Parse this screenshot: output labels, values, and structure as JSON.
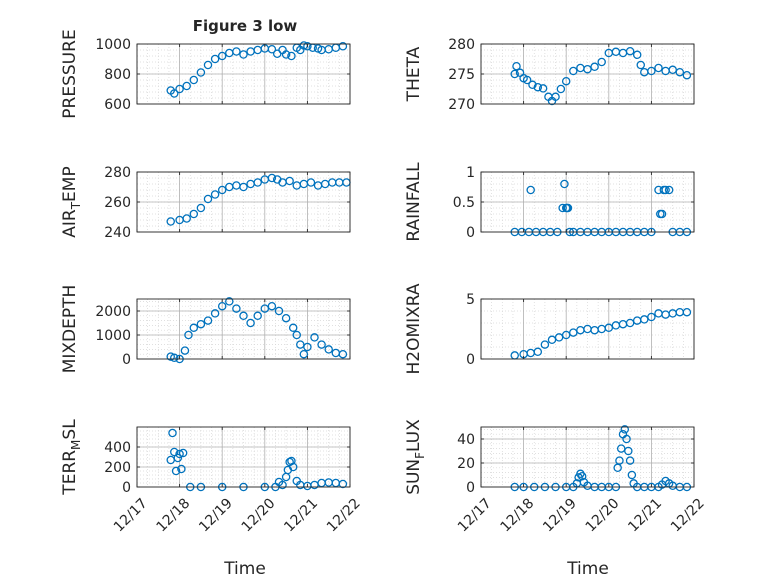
{
  "figure": {
    "title": "Figure 3 low",
    "xlabel": "Time"
  },
  "colors": {
    "marker": "#0072BD",
    "axis": "#262626",
    "grid": "#b0b0b0",
    "minor_grid": "#d6d6d6"
  },
  "chart_data": [
    {
      "type": "scatter",
      "name": "PRESSURE",
      "ylabel": "PRESSURE",
      "ylim": [
        600,
        1000
      ],
      "yticks": [
        600,
        800,
        1000
      ],
      "ytick_labels": [
        "600",
        "800",
        "1000"
      ],
      "xlim": [
        "12/17",
        "12/22"
      ],
      "grid": true,
      "x": [
        "12/17 19:00",
        "12/17 21:00",
        "12/18 00:00",
        "12/18 04:00",
        "12/18 08:00",
        "12/18 12:00",
        "12/18 16:00",
        "12/18 20:00",
        "12/19 00:00",
        "12/19 04:00",
        "12/19 08:00",
        "12/19 12:00",
        "12/19 16:00",
        "12/19 20:00",
        "12/20 00:00",
        "12/20 04:00",
        "12/20 07:00",
        "12/20 10:00",
        "12/20 12:00",
        "12/20 15:00",
        "12/20 18:00",
        "12/20 20:00",
        "12/20 22:00",
        "12/21 00:00",
        "12/21 03:00",
        "12/21 06:00",
        "12/21 08:00",
        "12/21 12:00",
        "12/21 16:00",
        "12/21 20:00"
      ],
      "y": [
        690,
        670,
        700,
        720,
        760,
        810,
        860,
        900,
        920,
        940,
        950,
        930,
        950,
        960,
        970,
        965,
        935,
        960,
        930,
        920,
        975,
        960,
        990,
        985,
        975,
        970,
        960,
        965,
        975,
        985
      ]
    },
    {
      "type": "scatter",
      "name": "THETA",
      "ylabel": "THETA",
      "ylim": [
        270,
        280
      ],
      "yticks": [
        270,
        275,
        280
      ],
      "ytick_labels": [
        "270",
        "275",
        "280"
      ],
      "xlim": [
        "12/17",
        "12/22"
      ],
      "grid": true,
      "x": [
        "12/17 19:00",
        "12/17 20:00",
        "12/17 22:00",
        "12/18 00:00",
        "12/18 02:00",
        "12/18 05:00",
        "12/18 08:00",
        "12/18 11:00",
        "12/18 14:00",
        "12/18 16:00",
        "12/18 18:00",
        "12/18 21:00",
        "12/19 00:00",
        "12/19 04:00",
        "12/19 08:00",
        "12/19 12:00",
        "12/19 16:00",
        "12/19 20:00",
        "12/20 00:00",
        "12/20 04:00",
        "12/20 08:00",
        "12/20 12:00",
        "12/20 16:00",
        "12/20 18:00",
        "12/20 20:00",
        "12/21 00:00",
        "12/21 04:00",
        "12/21 08:00",
        "12/21 12:00",
        "12/21 16:00",
        "12/21 20:00"
      ],
      "y": [
        275,
        276.3,
        275.2,
        274.3,
        274,
        273.2,
        272.8,
        272.6,
        271.2,
        270.5,
        271.2,
        272.5,
        273.8,
        275.5,
        276,
        275.8,
        276.2,
        277,
        278.5,
        278.7,
        278.5,
        278.8,
        278.2,
        276.5,
        275.3,
        275.5,
        276,
        275.5,
        275.7,
        275.3,
        274.8
      ]
    },
    {
      "type": "scatter",
      "name": "AIR_TEMP",
      "ylabel": "AIR_TEMP",
      "ylim": [
        240,
        280
      ],
      "yticks": [
        240,
        260,
        280
      ],
      "ytick_labels": [
        "240",
        "260",
        "280"
      ],
      "xlim": [
        "12/17",
        "12/22"
      ],
      "grid": true,
      "x": [
        "12/17 19:00",
        "12/18 00:00",
        "12/18 04:00",
        "12/18 08:00",
        "12/18 12:00",
        "12/18 16:00",
        "12/18 20:00",
        "12/19 00:00",
        "12/19 04:00",
        "12/19 08:00",
        "12/19 12:00",
        "12/19 16:00",
        "12/19 20:00",
        "12/20 00:00",
        "12/20 04:00",
        "12/20 07:00",
        "12/20 10:00",
        "12/20 14:00",
        "12/20 18:00",
        "12/20 22:00",
        "12/21 02:00",
        "12/21 06:00",
        "12/21 10:00",
        "12/21 14:00",
        "12/21 18:00",
        "12/21 22:00"
      ],
      "y": [
        247,
        248,
        249,
        252,
        256,
        262,
        265,
        268,
        270,
        271,
        270,
        272,
        273,
        275,
        276,
        275,
        273,
        274,
        271,
        272,
        273,
        271,
        272,
        273,
        273,
        273
      ]
    },
    {
      "type": "scatter",
      "name": "RAINFALL",
      "ylabel": "RAINFALL",
      "ylim": [
        0,
        1
      ],
      "yticks": [
        0,
        0.5,
        1
      ],
      "ytick_labels": [
        "0",
        "0.5",
        "1"
      ],
      "xlim": [
        "12/17",
        "12/22"
      ],
      "grid": true,
      "x": [
        "12/17 19:00",
        "12/17 23:00",
        "12/18 03:00",
        "12/18 04:00",
        "12/18 07:00",
        "12/18 11:00",
        "12/18 15:00",
        "12/18 19:00",
        "12/18 22:00",
        "12/18 23:00",
        "12/19 00:00",
        "12/19 00:30",
        "12/19 01:00",
        "12/19 02:00",
        "12/19 04:00",
        "12/19 08:00",
        "12/19 12:00",
        "12/19 16:00",
        "12/19 20:00",
        "12/20 00:00",
        "12/20 04:00",
        "12/20 08:00",
        "12/20 12:00",
        "12/20 16:00",
        "12/20 20:00",
        "12/21 00:00",
        "12/21 04:00",
        "12/21 05:00",
        "12/21 06:00",
        "12/21 07:00",
        "12/21 08:00",
        "12/21 10:00",
        "12/21 12:00",
        "12/21 16:00",
        "12/21 20:00"
      ],
      "y": [
        0,
        0,
        0,
        0.7,
        0,
        0,
        0,
        0,
        0.4,
        0.8,
        0.4,
        0.4,
        0.4,
        0,
        0,
        0,
        0,
        0,
        0,
        0,
        0,
        0,
        0,
        0,
        0,
        0,
        0.7,
        0.3,
        0.3,
        0.7,
        0.7,
        0.7,
        0,
        0,
        0
      ]
    },
    {
      "type": "scatter",
      "name": "MIXDEPTH",
      "ylabel": "MIXDEPTH",
      "ylim": [
        0,
        2500
      ],
      "yticks": [
        0,
        1000,
        2000
      ],
      "ytick_labels": [
        "0",
        "1000",
        "2000"
      ],
      "xlim": [
        "12/17",
        "12/22"
      ],
      "grid": true,
      "x": [
        "12/17 19:00",
        "12/17 21:00",
        "12/18 00:00",
        "12/18 03:00",
        "12/18 05:00",
        "12/18 08:00",
        "12/18 12:00",
        "12/18 16:00",
        "12/18 20:00",
        "12/19 00:00",
        "12/19 04:00",
        "12/19 08:00",
        "12/19 12:00",
        "12/19 16:00",
        "12/19 20:00",
        "12/20 00:00",
        "12/20 04:00",
        "12/20 08:00",
        "12/20 12:00",
        "12/20 16:00",
        "12/20 18:00",
        "12/20 20:00",
        "12/20 22:00",
        "12/21 00:00",
        "12/21 04:00",
        "12/21 08:00",
        "12/21 12:00",
        "12/21 16:00",
        "12/21 20:00"
      ],
      "y": [
        100,
        50,
        0,
        350,
        1000,
        1300,
        1450,
        1600,
        1900,
        2200,
        2400,
        2100,
        1800,
        1500,
        1800,
        2100,
        2200,
        2000,
        1700,
        1300,
        1000,
        600,
        200,
        500,
        900,
        600,
        400,
        250,
        200
      ]
    },
    {
      "type": "scatter",
      "name": "H2OMIXRA",
      "ylabel": "H2OMIXRA",
      "ylim": [
        0,
        5
      ],
      "yticks": [
        0,
        5
      ],
      "ytick_labels": [
        "0",
        "5"
      ],
      "xlim": [
        "12/17",
        "12/22"
      ],
      "grid": true,
      "x": [
        "12/17 19:00",
        "12/18 00:00",
        "12/18 04:00",
        "12/18 08:00",
        "12/18 12:00",
        "12/18 16:00",
        "12/18 20:00",
        "12/19 00:00",
        "12/19 04:00",
        "12/19 08:00",
        "12/19 12:00",
        "12/19 16:00",
        "12/19 20:00",
        "12/20 00:00",
        "12/20 04:00",
        "12/20 08:00",
        "12/20 12:00",
        "12/20 16:00",
        "12/20 20:00",
        "12/21 00:00",
        "12/21 04:00",
        "12/21 08:00",
        "12/21 12:00",
        "12/21 16:00",
        "12/21 20:00"
      ],
      "y": [
        0.3,
        0.4,
        0.5,
        0.6,
        1.2,
        1.6,
        1.8,
        2.0,
        2.2,
        2.4,
        2.5,
        2.4,
        2.5,
        2.6,
        2.8,
        2.9,
        3.0,
        3.2,
        3.3,
        3.5,
        3.8,
        3.7,
        3.8,
        3.9,
        3.9
      ]
    },
    {
      "type": "scatter",
      "name": "TERR_MSL",
      "ylabel": "TERR_MSL",
      "ylim": [
        0,
        600
      ],
      "yticks": [
        0,
        200,
        400
      ],
      "ytick_labels": [
        "0",
        "200",
        "400"
      ],
      "xlim": [
        "12/17",
        "12/22"
      ],
      "grid": true,
      "x": [
        "12/17 19:00",
        "12/17 20:00",
        "12/17 21:00",
        "12/17 22:00",
        "12/17 23:00",
        "12/18 00:00",
        "12/18 01:00",
        "12/18 02:00",
        "12/18 06:00",
        "12/18 12:00",
        "12/19 00:00",
        "12/19 12:00",
        "12/20 00:00",
        "12/20 06:00",
        "12/20 08:00",
        "12/20 10:00",
        "12/20 12:00",
        "12/20 13:00",
        "12/20 14:00",
        "12/20 15:00",
        "12/20 16:00",
        "12/20 18:00",
        "12/20 20:00",
        "12/21 00:00",
        "12/21 04:00",
        "12/21 08:00",
        "12/21 12:00",
        "12/21 16:00",
        "12/21 20:00"
      ],
      "y": [
        270,
        540,
        350,
        160,
        290,
        330,
        180,
        340,
        0,
        0,
        0,
        0,
        0,
        0,
        50,
        20,
        100,
        170,
        250,
        260,
        200,
        60,
        20,
        10,
        20,
        40,
        45,
        40,
        30
      ]
    },
    {
      "type": "scatter",
      "name": "SUN_FLUX",
      "ylabel": "SUN_FLUX",
      "ylim": [
        0,
        50
      ],
      "yticks": [
        0,
        20,
        40
      ],
      "ytick_labels": [
        "0",
        "20",
        "40"
      ],
      "xlim": [
        "12/17",
        "12/22"
      ],
      "grid": true,
      "x": [
        "12/17 19:00",
        "12/18 00:00",
        "12/18 06:00",
        "12/18 12:00",
        "12/18 18:00",
        "12/19 00:00",
        "12/19 04:00",
        "12/19 06:00",
        "12/19 07:00",
        "12/19 08:00",
        "12/19 09:00",
        "12/19 10:00",
        "12/19 12:00",
        "12/19 16:00",
        "12/19 20:00",
        "12/20 00:00",
        "12/20 04:00",
        "12/20 05:00",
        "12/20 06:00",
        "12/20 07:00",
        "12/20 08:00",
        "12/20 09:00",
        "12/20 10:00",
        "12/20 11:00",
        "12/20 12:00",
        "12/20 13:00",
        "12/20 14:00",
        "12/20 16:00",
        "12/20 20:00",
        "12/21 00:00",
        "12/21 04:00",
        "12/21 06:00",
        "12/21 08:00",
        "12/21 10:00",
        "12/21 12:00",
        "12/21 16:00",
        "12/21 20:00"
      ],
      "y": [
        0,
        0,
        0,
        0,
        0,
        0,
        0,
        3,
        8,
        11,
        9,
        4,
        1,
        0,
        0,
        0,
        0,
        16,
        22,
        32,
        44,
        48,
        40,
        30,
        22,
        10,
        3,
        0,
        0,
        0,
        0,
        2,
        5,
        3,
        1,
        0,
        0
      ]
    }
  ],
  "xticks": [
    "12/17",
    "12/18",
    "12/19",
    "12/20",
    "12/21",
    "12/22"
  ]
}
